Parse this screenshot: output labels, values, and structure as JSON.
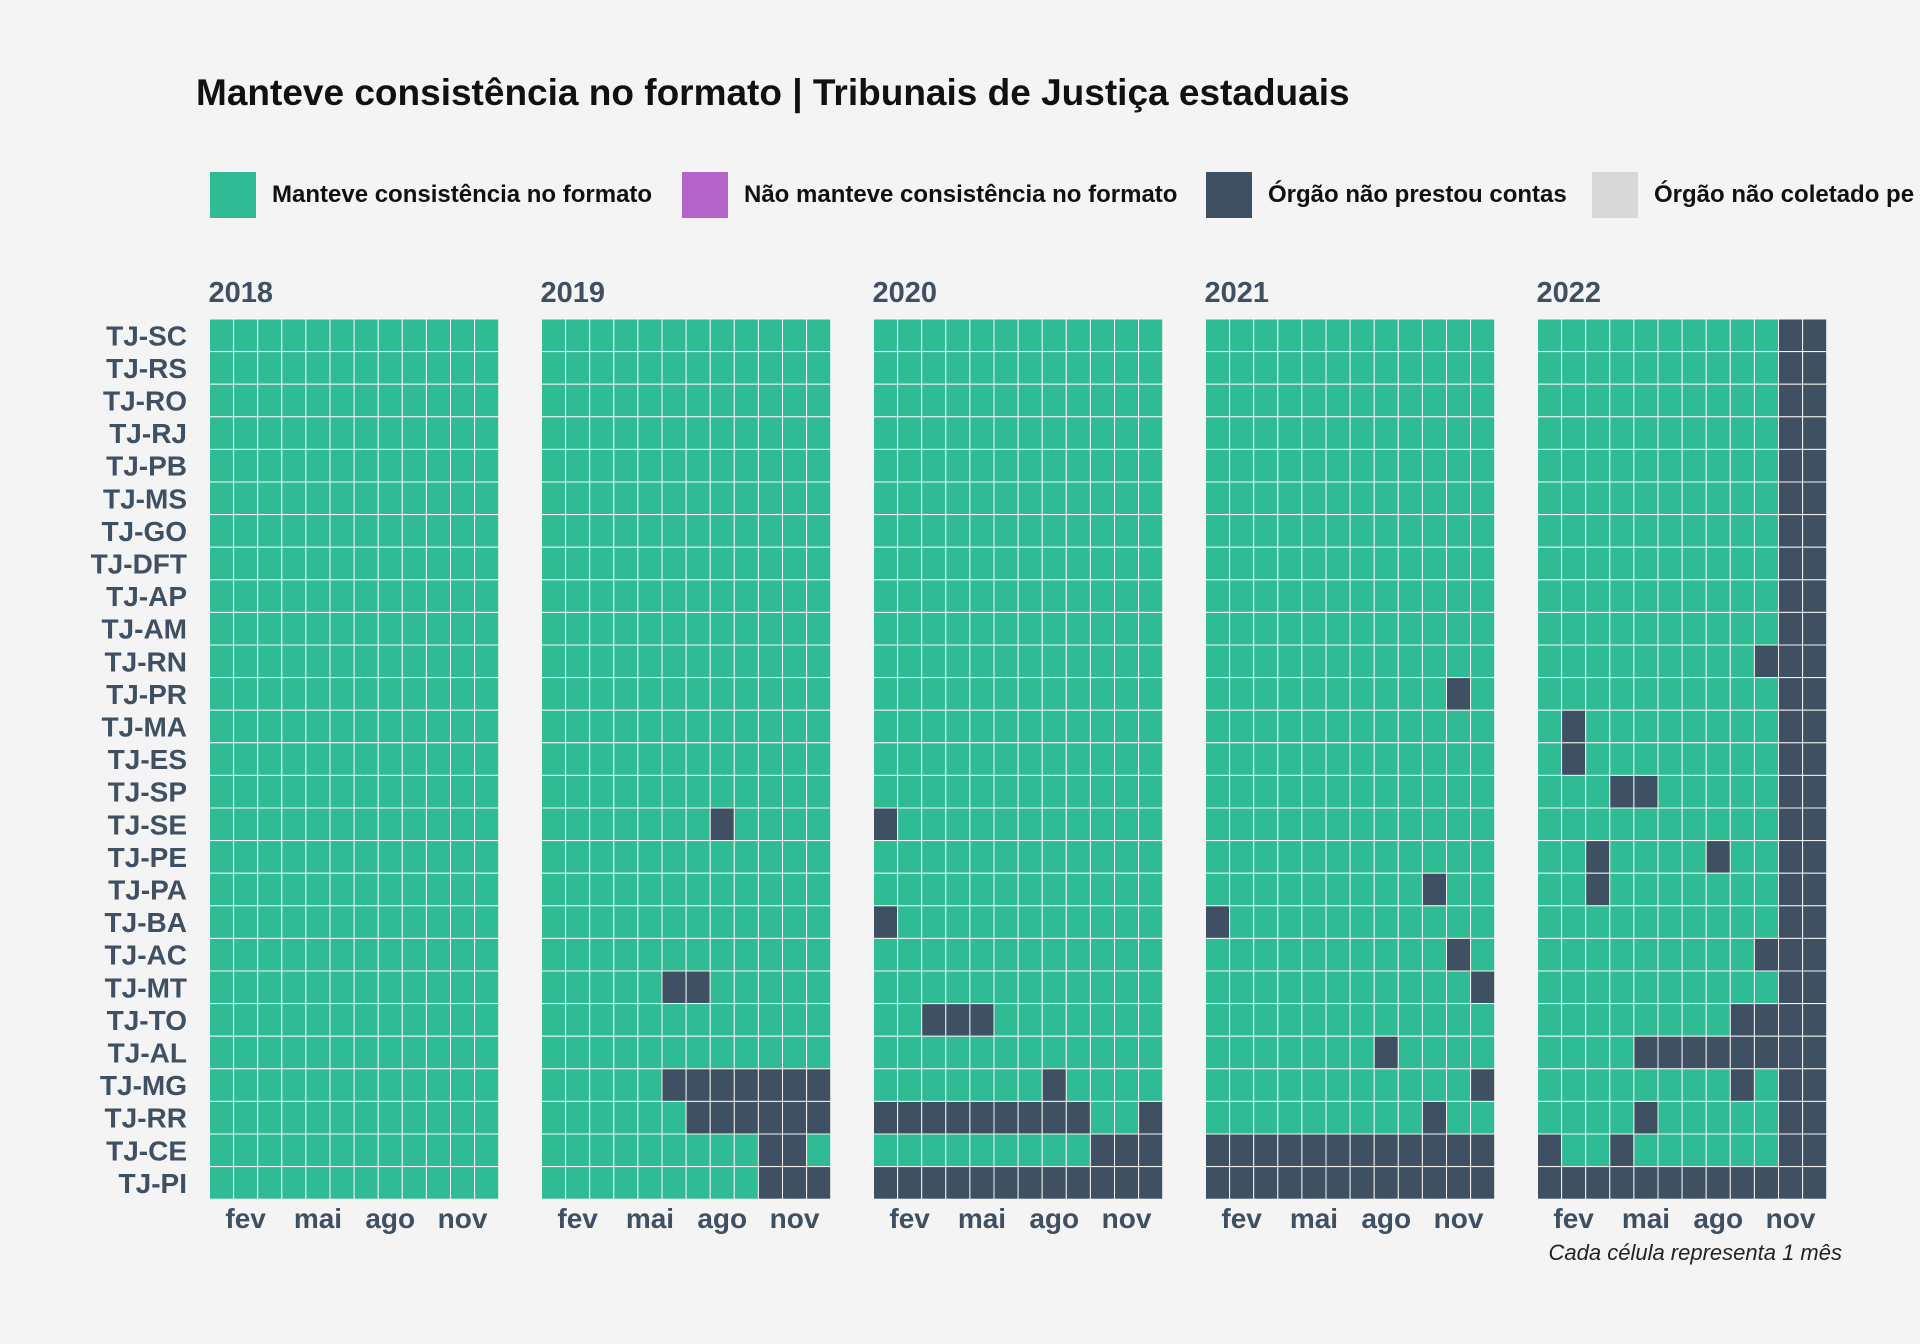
{
  "title": "Manteve consistência no formato | Tribunais de Justiça estaduais",
  "caption": "Cada célula representa 1 mês",
  "legend": [
    {
      "label": "Manteve consistência no formato",
      "color": "#2fbb94"
    },
    {
      "label": "Não manteve consistência no formato",
      "color": "#b264c8"
    },
    {
      "label": "Órgão não prestou contas",
      "color": "#3e5062"
    },
    {
      "label": "Órgão não coletado pe",
      "color": "#d8d8d8"
    }
  ],
  "chart_data": {
    "type": "heatmap",
    "title": "Manteve consistência no formato | Tribunais de Justiça estaduais",
    "caption": "Cada célula representa 1 mês",
    "status_labels": {
      "0": "Manteve consistência no formato",
      "1": "Não manteve consistência no formato",
      "2": "Órgão não prestou contas",
      "3": "Órgão não coletado pe"
    },
    "colors": {
      "0": "#2fbb94",
      "1": "#b264c8",
      "2": "#3e5062",
      "3": "#d8d8d8"
    },
    "years": [
      "2018",
      "2019",
      "2020",
      "2021",
      "2022"
    ],
    "x_tick_labels": [
      {
        "month": 2,
        "label": "fev"
      },
      {
        "month": 5,
        "label": "mai"
      },
      {
        "month": 8,
        "label": "ago"
      },
      {
        "month": 11,
        "label": "nov"
      }
    ],
    "rows": [
      "TJ-SC",
      "TJ-RS",
      "TJ-RO",
      "TJ-RJ",
      "TJ-PB",
      "TJ-MS",
      "TJ-GO",
      "TJ-DFT",
      "TJ-AP",
      "TJ-AM",
      "TJ-RN",
      "TJ-PR",
      "TJ-MA",
      "TJ-ES",
      "TJ-SP",
      "TJ-SE",
      "TJ-PE",
      "TJ-PA",
      "TJ-BA",
      "TJ-AC",
      "TJ-MT",
      "TJ-TO",
      "TJ-AL",
      "TJ-MG",
      "TJ-RR",
      "TJ-CE",
      "TJ-PI"
    ],
    "default_status": 0,
    "exceptions": {
      "TJ-SC": {
        "2022": {
          "11": 2,
          "12": 2
        }
      },
      "TJ-RS": {
        "2022": {
          "11": 2,
          "12": 2
        }
      },
      "TJ-RO": {
        "2022": {
          "11": 2,
          "12": 2
        }
      },
      "TJ-RJ": {
        "2022": {
          "11": 2,
          "12": 2
        }
      },
      "TJ-PB": {
        "2022": {
          "11": 2,
          "12": 2
        }
      },
      "TJ-MS": {
        "2022": {
          "11": 2,
          "12": 2
        }
      },
      "TJ-GO": {
        "2022": {
          "11": 2,
          "12": 2
        }
      },
      "TJ-DFT": {
        "2022": {
          "11": 2,
          "12": 2
        }
      },
      "TJ-AP": {
        "2022": {
          "11": 2,
          "12": 2
        }
      },
      "TJ-AM": {
        "2022": {
          "11": 2,
          "12": 2
        }
      },
      "TJ-RN": {
        "2022": {
          "10": 2,
          "11": 2,
          "12": 2
        }
      },
      "TJ-PR": {
        "2021": {
          "11": 2
        },
        "2022": {
          "11": 2,
          "12": 2
        }
      },
      "TJ-MA": {
        "2022": {
          "2": 2,
          "11": 2,
          "12": 2
        }
      },
      "TJ-ES": {
        "2022": {
          "2": 2,
          "11": 2,
          "12": 2
        }
      },
      "TJ-SP": {
        "2022": {
          "4": 2,
          "5": 2,
          "11": 2,
          "12": 2
        }
      },
      "TJ-SE": {
        "2019": {
          "8": 2
        },
        "2020": {
          "1": 2
        },
        "2022": {
          "11": 2,
          "12": 2
        }
      },
      "TJ-PE": {
        "2022": {
          "3": 2,
          "8": 2,
          "11": 2,
          "12": 2
        }
      },
      "TJ-PA": {
        "2021": {
          "10": 2
        },
        "2022": {
          "3": 2,
          "11": 2,
          "12": 2
        }
      },
      "TJ-BA": {
        "2020": {
          "1": 2
        },
        "2021": {
          "1": 2
        },
        "2022": {
          "11": 2,
          "12": 2
        }
      },
      "TJ-AC": {
        "2021": {
          "11": 2
        },
        "2022": {
          "10": 2,
          "11": 2,
          "12": 2
        }
      },
      "TJ-MT": {
        "2019": {
          "6": 2,
          "7": 2
        },
        "2021": {
          "12": 2
        },
        "2022": {
          "11": 2,
          "12": 2
        }
      },
      "TJ-TO": {
        "2020": {
          "3": 2,
          "4": 2,
          "5": 2
        },
        "2022": {
          "9": 2,
          "10": 2,
          "11": 2,
          "12": 2
        }
      },
      "TJ-AL": {
        "2021": {
          "8": 2
        },
        "2022": {
          "5": 2,
          "6": 2,
          "7": 2,
          "8": 2,
          "9": 2,
          "10": 2,
          "11": 2,
          "12": 2
        }
      },
      "TJ-MG": {
        "2019": {
          "6": 2,
          "7": 2,
          "8": 2,
          "9": 2,
          "10": 2,
          "11": 2,
          "12": 2
        },
        "2020": {
          "8": 2
        },
        "2021": {
          "12": 2
        },
        "2022": {
          "9": 2,
          "11": 2,
          "12": 2
        }
      },
      "TJ-RR": {
        "2019": {
          "7": 2,
          "8": 2,
          "9": 2,
          "10": 2,
          "11": 2,
          "12": 2
        },
        "2020": {
          "1": 2,
          "2": 2,
          "3": 2,
          "4": 2,
          "5": 2,
          "6": 2,
          "7": 2,
          "8": 2,
          "9": 2,
          "12": 2
        },
        "2021": {
          "10": 2
        },
        "2022": {
          "5": 2,
          "11": 2,
          "12": 2
        }
      },
      "TJ-CE": {
        "2019": {
          "10": 2,
          "11": 2
        },
        "2020": {
          "10": 2,
          "11": 2,
          "12": 2
        },
        "2021": {
          "1": 2,
          "2": 2,
          "3": 2,
          "4": 2,
          "5": 2,
          "6": 2,
          "7": 2,
          "8": 2,
          "9": 2,
          "10": 2,
          "11": 2,
          "12": 2
        },
        "2022": {
          "1": 2,
          "4": 2,
          "11": 2,
          "12": 2
        }
      },
      "TJ-PI": {
        "2019": {
          "10": 2,
          "11": 2,
          "12": 2
        },
        "2020": {
          "1": 2,
          "2": 2,
          "3": 2,
          "4": 2,
          "5": 2,
          "6": 2,
          "7": 2,
          "8": 2,
          "9": 2,
          "10": 2,
          "11": 2,
          "12": 2
        },
        "2021": {
          "1": 2,
          "2": 2,
          "3": 2,
          "4": 2,
          "5": 2,
          "6": 2,
          "7": 2,
          "8": 2,
          "9": 2,
          "10": 2,
          "11": 2,
          "12": 2
        },
        "2022": {
          "1": 2,
          "2": 2,
          "3": 2,
          "4": 2,
          "5": 2,
          "6": 2,
          "7": 2,
          "8": 2,
          "9": 2,
          "10": 2,
          "11": 2,
          "12": 2
        }
      }
    }
  }
}
